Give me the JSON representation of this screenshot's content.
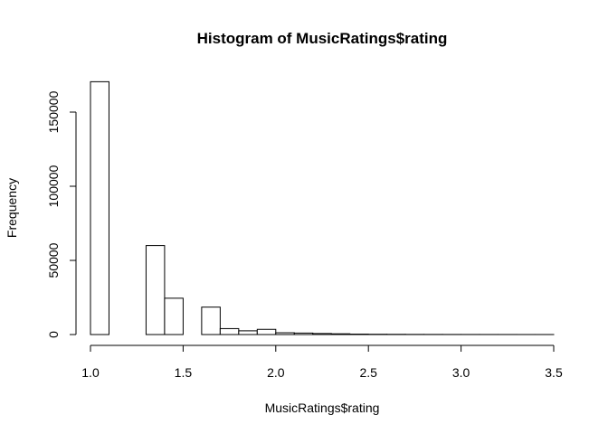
{
  "chart_data": {
    "type": "bar",
    "title": "Histogram of MusicRatings$rating",
    "xlabel": "MusicRatings$rating",
    "ylabel": "Frequency",
    "xlim": [
      1.0,
      3.5
    ],
    "ylim": [
      0,
      170000
    ],
    "x_ticks": [
      "1.0",
      "1.5",
      "2.0",
      "2.5",
      "3.0",
      "3.5"
    ],
    "y_ticks": [
      "0",
      "50000",
      "100000",
      "150000"
    ],
    "bin_edges": [
      1.0,
      1.1,
      1.2,
      1.3,
      1.4,
      1.5,
      1.6,
      1.7,
      1.8,
      1.9,
      2.0,
      2.1,
      2.2,
      2.3,
      2.4,
      2.5,
      2.6,
      2.7,
      2.8,
      2.9,
      3.0,
      3.1,
      3.2,
      3.3,
      3.4,
      3.5
    ],
    "values": [
      170500,
      0,
      0,
      60000,
      24500,
      0,
      18500,
      4000,
      2500,
      3500,
      1200,
      1000,
      700,
      500,
      300,
      200,
      150,
      100,
      80,
      60,
      50,
      40,
      30,
      20,
      15
    ],
    "grid": false,
    "bar_fill": "#ffffff",
    "bar_stroke": "#000000"
  }
}
